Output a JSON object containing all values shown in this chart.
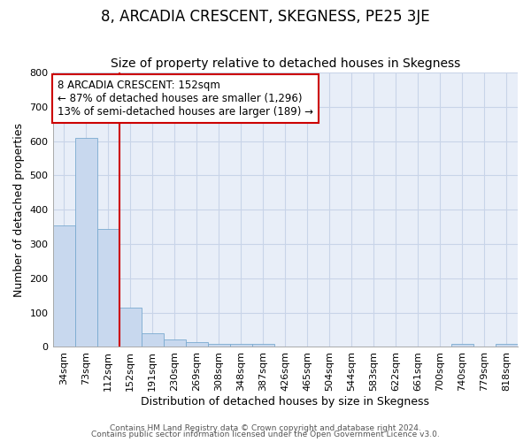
{
  "title": "8, ARCADIA CRESCENT, SKEGNESS, PE25 3JE",
  "subtitle": "Size of property relative to detached houses in Skegness",
  "xlabel": "Distribution of detached houses by size in Skegness",
  "ylabel": "Number of detached properties",
  "footer_line1": "Contains HM Land Registry data © Crown copyright and database right 2024.",
  "footer_line2": "Contains public sector information licensed under the Open Government Licence v3.0.",
  "categories": [
    "34sqm",
    "73sqm",
    "112sqm",
    "152sqm",
    "191sqm",
    "230sqm",
    "269sqm",
    "308sqm",
    "348sqm",
    "387sqm",
    "426sqm",
    "465sqm",
    "504sqm",
    "544sqm",
    "583sqm",
    "622sqm",
    "661sqm",
    "700sqm",
    "740sqm",
    "779sqm",
    "818sqm"
  ],
  "values": [
    355,
    610,
    345,
    115,
    40,
    22,
    15,
    10,
    8,
    8,
    0,
    0,
    0,
    0,
    0,
    0,
    0,
    0,
    8,
    0,
    8
  ],
  "bar_color": "#c8d8ee",
  "bar_edge_color": "#7aaad0",
  "red_line_index": 3,
  "red_line_color": "#cc0000",
  "annotation_box_color": "#cc0000",
  "annotation_text_line1": "8 ARCADIA CRESCENT: 152sqm",
  "annotation_text_line2": "← 87% of detached houses are smaller (1,296)",
  "annotation_text_line3": "13% of semi-detached houses are larger (189) →",
  "ylim": [
    0,
    800
  ],
  "yticks": [
    0,
    100,
    200,
    300,
    400,
    500,
    600,
    700,
    800
  ],
  "grid_color": "#c8d4e8",
  "bg_color": "#e8eef8",
  "title_fontsize": 12,
  "subtitle_fontsize": 10,
  "axis_label_fontsize": 9,
  "tick_fontsize": 8
}
